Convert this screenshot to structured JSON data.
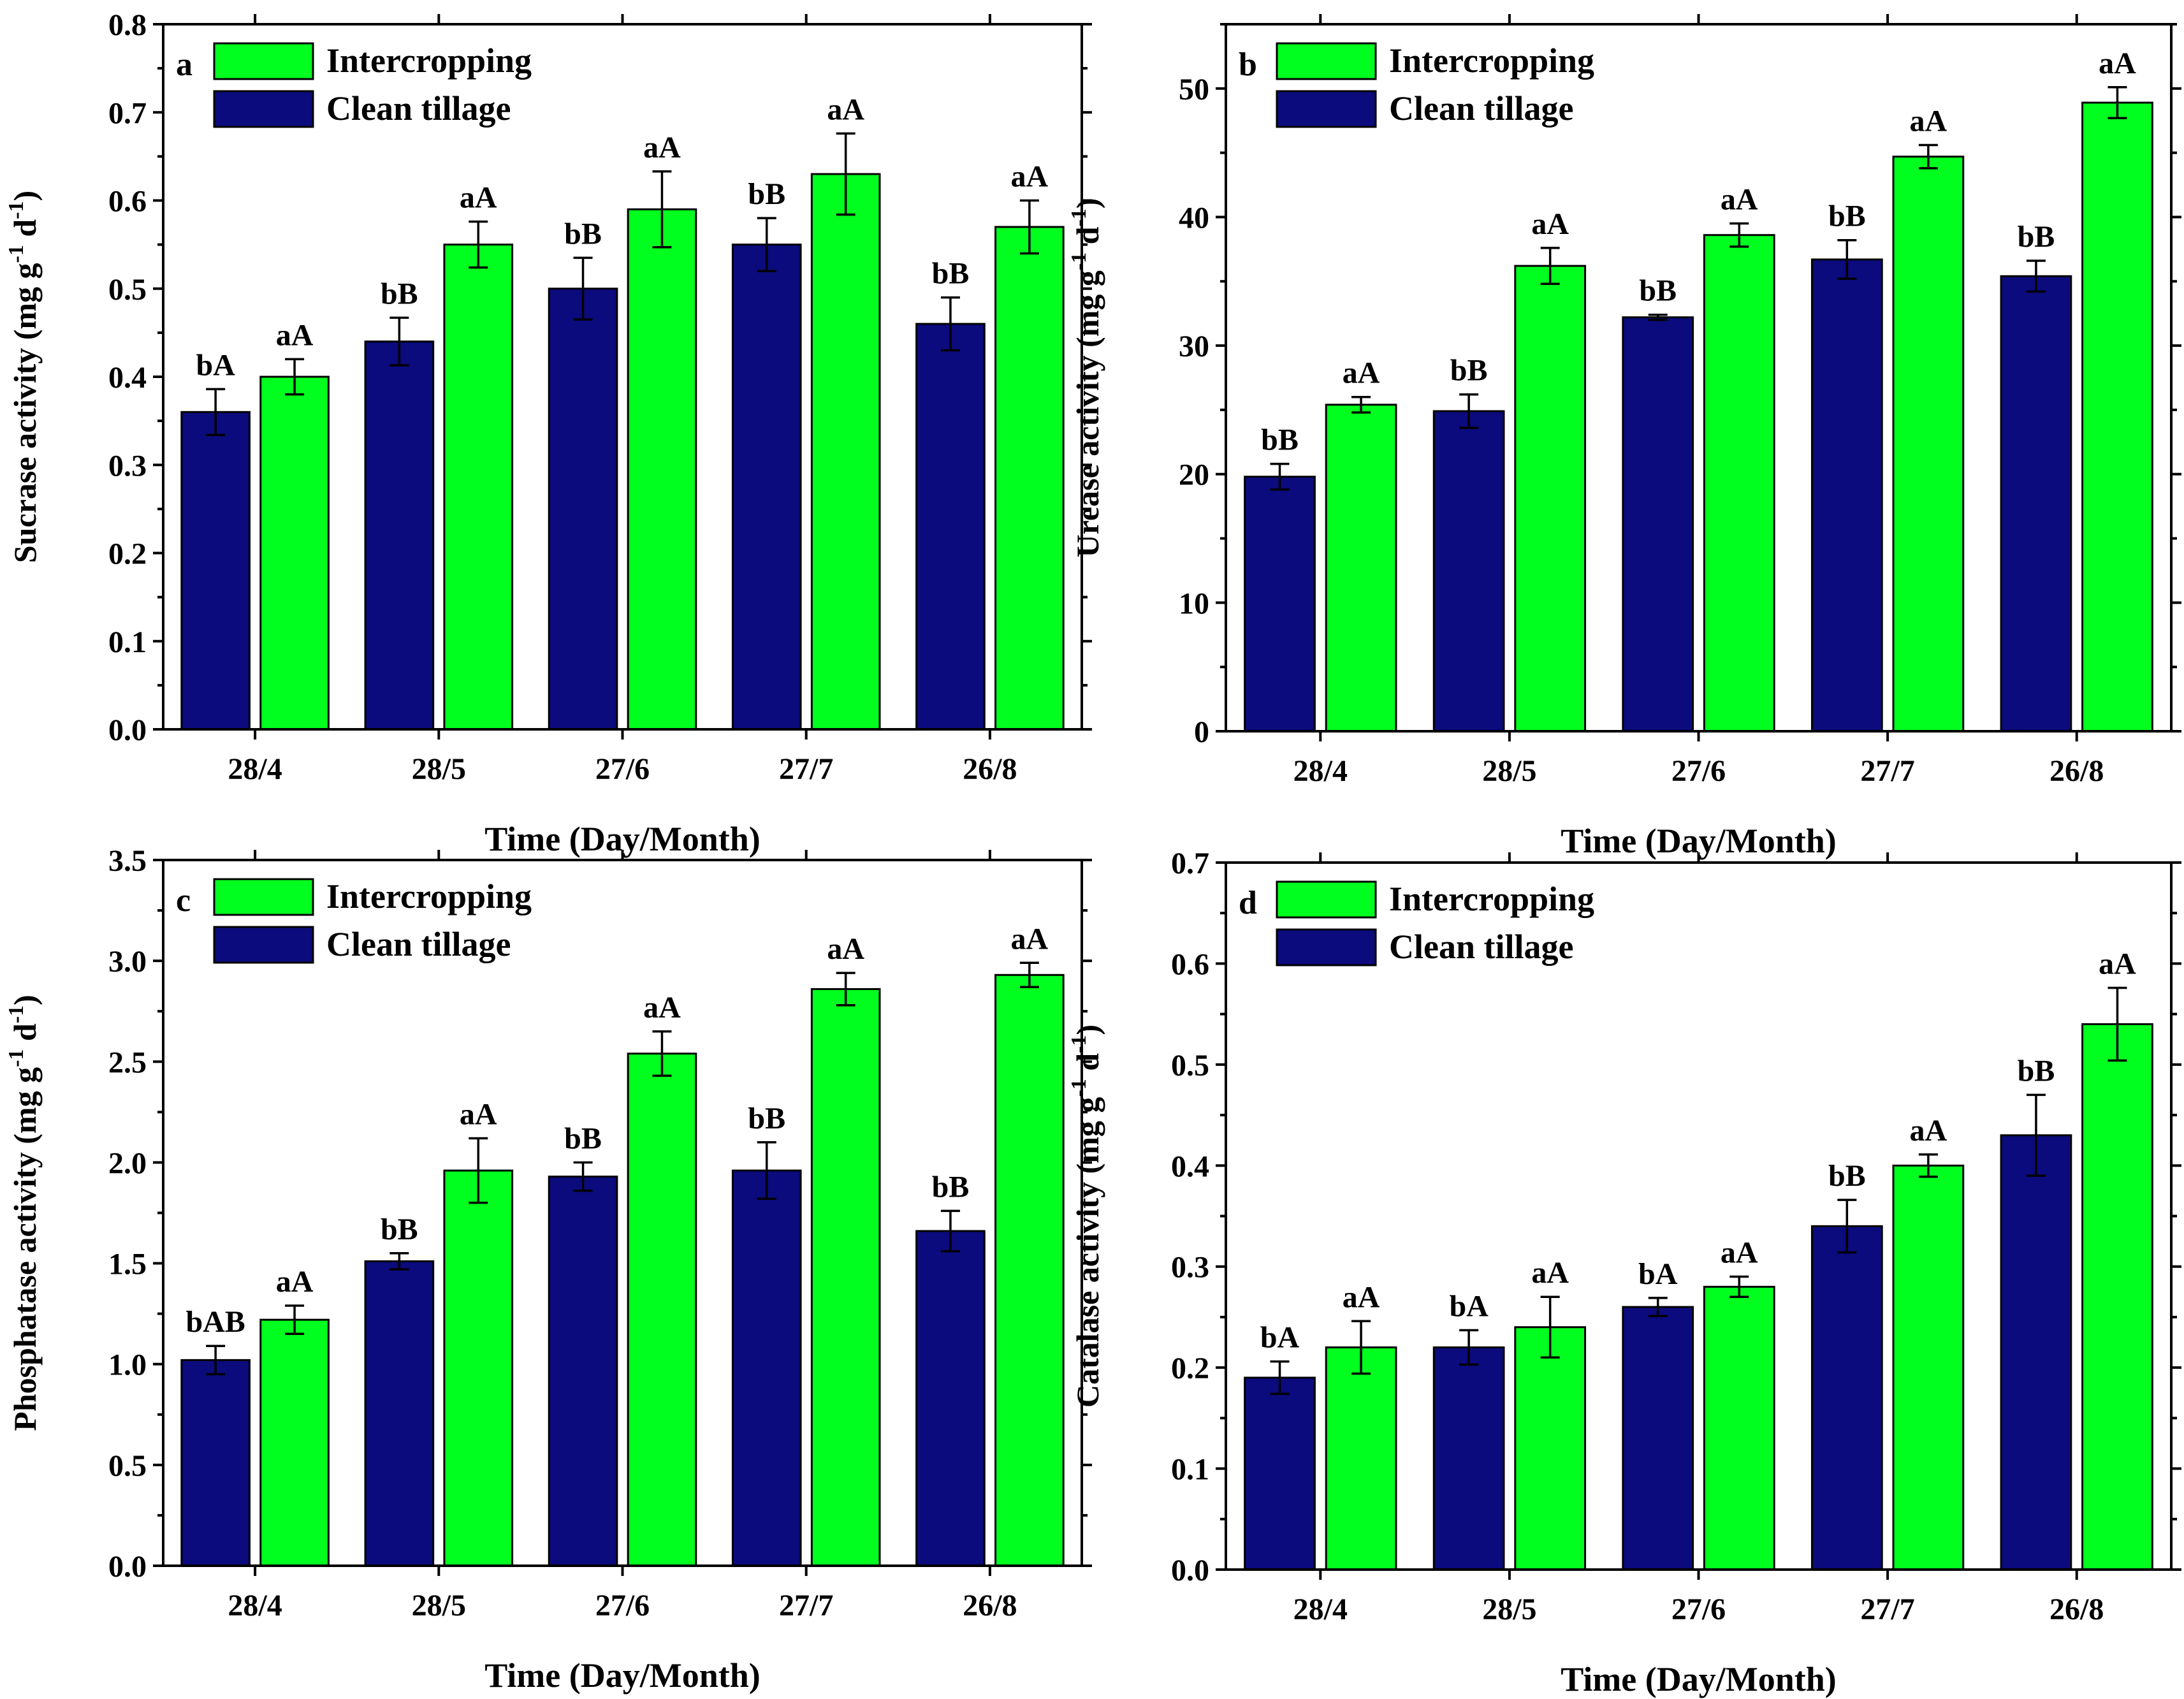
{
  "chart_data": [
    {
      "type": "bar",
      "panel_label": "a",
      "title": "",
      "xlabel": "Time (Day/Month)",
      "ylabel": "Sucrase activity (mg g",
      "ylabel_sup1": "-1",
      "ylabel_mid": " d",
      "ylabel_sup2": "-1",
      "ylabel_end": ")",
      "ylim": [
        0,
        0.8
      ],
      "yticks": [
        "0.0",
        "0.1",
        "0.2",
        "0.3",
        "0.4",
        "0.5",
        "0.6",
        "0.7",
        "0.8"
      ],
      "categories": [
        "28/4",
        "28/5",
        "27/6",
        "27/7",
        "26/8"
      ],
      "legend_position": "top-left",
      "grid": false,
      "series": [
        {
          "name": "Clean tillage",
          "color": "#0b0b7d",
          "values": [
            0.36,
            0.44,
            0.5,
            0.55,
            0.46
          ],
          "errors": [
            0.026,
            0.027,
            0.035,
            0.03,
            0.03
          ],
          "labels": [
            "bA",
            "bB",
            "bB",
            "bB",
            "bB"
          ]
        },
        {
          "name": "Intercropping",
          "color": "#00ff1e",
          "values": [
            0.4,
            0.55,
            0.59,
            0.63,
            0.57
          ],
          "errors": [
            0.02,
            0.026,
            0.043,
            0.046,
            0.03
          ],
          "labels": [
            "aA",
            "aA",
            "aA",
            "aA",
            "aA"
          ]
        }
      ]
    },
    {
      "type": "bar",
      "panel_label": "b",
      "title": "",
      "xlabel": "Time (Day/Month)",
      "ylabel": "Urease activity (mg g",
      "ylabel_sup1": "-1",
      "ylabel_mid": " d",
      "ylabel_sup2": "-1",
      "ylabel_end": ")",
      "ylim": [
        0,
        55
      ],
      "yticks": [
        "0",
        "10",
        "20",
        "30",
        "40",
        "50"
      ],
      "categories": [
        "28/4",
        "28/5",
        "27/6",
        "27/7",
        "26/8"
      ],
      "legend_position": "top-left",
      "grid": false,
      "series": [
        {
          "name": "Clean tillage",
          "color": "#0b0b7d",
          "values": [
            19.8,
            24.9,
            32.2,
            36.7,
            35.4
          ],
          "errors": [
            1.0,
            1.3,
            0.2,
            1.5,
            1.2
          ],
          "labels": [
            "bB",
            "bB",
            "bB",
            "bB",
            "bB"
          ]
        },
        {
          "name": "Intercropping",
          "color": "#00ff1e",
          "values": [
            25.4,
            36.2,
            38.6,
            44.7,
            48.9
          ],
          "errors": [
            0.6,
            1.4,
            0.9,
            0.9,
            1.2
          ],
          "labels": [
            "aA",
            "aA",
            "aA",
            "aA",
            "aA"
          ]
        }
      ]
    },
    {
      "type": "bar",
      "panel_label": "c",
      "title": "",
      "xlabel": "Time (Day/Month)",
      "ylabel": "Phosphatase activity (mg g",
      "ylabel_sup1": "-1",
      "ylabel_mid": " d",
      "ylabel_sup2": "-1",
      "ylabel_end": ")",
      "ylim": [
        0,
        3.5
      ],
      "yticks": [
        "0.0",
        "0.5",
        "1.0",
        "1.5",
        "2.0",
        "2.5",
        "3.0",
        "3.5"
      ],
      "categories": [
        "28/4",
        "28/5",
        "27/6",
        "27/7",
        "26/8"
      ],
      "legend_position": "top-left",
      "grid": false,
      "series": [
        {
          "name": "Clean tillage",
          "color": "#0b0b7d",
          "values": [
            1.02,
            1.51,
            1.93,
            1.96,
            1.66
          ],
          "errors": [
            0.07,
            0.04,
            0.07,
            0.14,
            0.1
          ],
          "labels": [
            "bAB",
            "bB",
            "bB",
            "bB",
            "bB"
          ]
        },
        {
          "name": "Intercropping",
          "color": "#00ff1e",
          "values": [
            1.22,
            1.96,
            2.54,
            2.86,
            2.93
          ],
          "errors": [
            0.07,
            0.16,
            0.11,
            0.08,
            0.06
          ],
          "labels": [
            "aA",
            "aA",
            "aA",
            "aA",
            "aA"
          ]
        }
      ]
    },
    {
      "type": "bar",
      "panel_label": "d",
      "title": "",
      "xlabel": "Time (Day/Month)",
      "ylabel": "Catalase activity (mg g",
      "ylabel_sup1": "-1",
      "ylabel_mid": " d",
      "ylabel_sup2": "-1",
      "ylabel_end": ")",
      "ylim": [
        0,
        0.7
      ],
      "yticks": [
        "0.0",
        "0.1",
        "0.2",
        "0.3",
        "0.4",
        "0.5",
        "0.6",
        "0.7"
      ],
      "categories": [
        "28/4",
        "28/5",
        "27/6",
        "27/7",
        "26/8"
      ],
      "legend_position": "top-left",
      "grid": false,
      "series": [
        {
          "name": "Clean tillage",
          "color": "#0b0b7d",
          "values": [
            0.19,
            0.22,
            0.26,
            0.34,
            0.43
          ],
          "errors": [
            0.016,
            0.017,
            0.009,
            0.026,
            0.04
          ],
          "labels": [
            "bA",
            "bA",
            "bA",
            "bB",
            "bB"
          ]
        },
        {
          "name": "Intercropping",
          "color": "#00ff1e",
          "values": [
            0.22,
            0.24,
            0.28,
            0.4,
            0.54
          ],
          "errors": [
            0.026,
            0.03,
            0.01,
            0.011,
            0.036
          ],
          "labels": [
            "aA",
            "aA",
            "aA",
            "aA",
            "aA"
          ]
        }
      ]
    }
  ]
}
